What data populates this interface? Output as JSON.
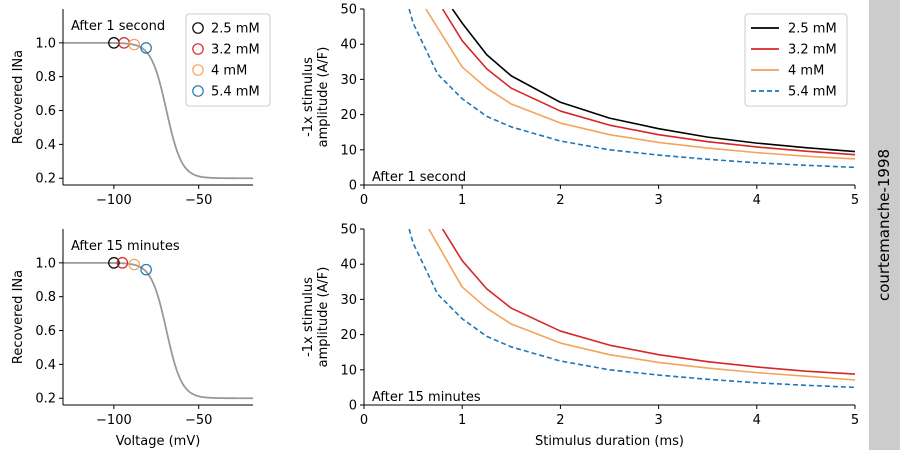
{
  "side_label": "courtemanche-1998",
  "colors": {
    "2.5 mM": "#000000",
    "3.2 mM": "#d62728",
    "4 mM": "#f5a35a",
    "5.4 mM": "#1f77b4",
    "curve": "#999999",
    "sidebar": "#cccccc"
  },
  "chart_data": [
    {
      "type": "line",
      "id": "recovery-1s",
      "annotation": "After 1 second",
      "ylabel": "Recovered INa",
      "xlabel": "",
      "xlim": [
        -130,
        -18
      ],
      "ylim": [
        0.16,
        1.2
      ],
      "xticks": [
        -100,
        -50
      ],
      "xtick_labels": [
        "−100",
        "−50"
      ],
      "yticks": [
        0.2,
        0.4,
        0.6,
        0.8,
        1.0
      ],
      "ytick_labels": [
        "0.2",
        "0.4",
        "0.6",
        "0.8",
        "1.0"
      ],
      "curve": {
        "v_half": -69,
        "slope": 4.5,
        "min": 0.2,
        "max": 1.0
      },
      "markers": [
        {
          "name": "2.5 mM",
          "x": -100,
          "y": 1.0
        },
        {
          "name": "3.2 mM",
          "x": -94,
          "y": 1.0
        },
        {
          "name": "4 mM",
          "x": -88,
          "y": 0.99
        },
        {
          "name": "5.4 mM",
          "x": -81,
          "y": 0.97
        }
      ],
      "legend": {
        "placement": "top-right",
        "entries": [
          "2.5 mM",
          "3.2 mM",
          "4 mM",
          "5.4 mM"
        ]
      }
    },
    {
      "type": "line",
      "id": "threshold-1s",
      "annotation": "After 1 second",
      "ylabel": "-1x stimulus\namplitude (A/F)",
      "xlabel": "",
      "xlim": [
        0,
        5
      ],
      "ylim": [
        0,
        50
      ],
      "xticks": [
        0,
        1,
        2,
        3,
        4,
        5
      ],
      "xtick_labels": [
        "0",
        "1",
        "2",
        "3",
        "4",
        "5"
      ],
      "yticks": [
        0,
        10,
        20,
        30,
        40,
        50
      ],
      "ytick_labels": [
        "0",
        "10",
        "20",
        "30",
        "40",
        "50"
      ],
      "series": [
        {
          "name": "2.5 mM",
          "style": "solid",
          "x": [
            0.9,
            1,
            1.25,
            1.5,
            2,
            2.5,
            3,
            3.5,
            4,
            4.5,
            5
          ],
          "y": [
            50,
            46,
            37,
            31,
            23.5,
            19,
            16,
            13.6,
            11.9,
            10.6,
            9.5
          ]
        },
        {
          "name": "3.2 mM",
          "style": "solid",
          "x": [
            0.8,
            1,
            1.25,
            1.5,
            2,
            2.5,
            3,
            3.5,
            4,
            4.5,
            5
          ],
          "y": [
            50,
            41,
            33,
            27.5,
            21,
            17,
            14.3,
            12.3,
            10.8,
            9.6,
            8.6
          ]
        },
        {
          "name": "4 mM",
          "style": "solid",
          "x": [
            0.63,
            1,
            1.25,
            1.5,
            2,
            2.5,
            3,
            3.5,
            4,
            4.5,
            5
          ],
          "y": [
            50,
            33.5,
            27.5,
            23,
            17.6,
            14.3,
            12.1,
            10.5,
            9.2,
            8.2,
            7.4
          ]
        },
        {
          "name": "5.4 mM",
          "style": "dashed",
          "x": [
            0.46,
            0.5,
            0.75,
            1,
            1.25,
            1.5,
            2,
            2.5,
            3,
            3.5,
            4,
            4.5,
            5
          ],
          "y": [
            50,
            46,
            31.5,
            24.5,
            19.5,
            16.5,
            12.5,
            10,
            8.5,
            7.3,
            6.3,
            5.6,
            5
          ]
        }
      ],
      "legend": {
        "placement": "top-right",
        "entries": [
          "2.5 mM",
          "3.2 mM",
          "4 mM",
          "5.4 mM"
        ]
      }
    },
    {
      "type": "line",
      "id": "recovery-15m",
      "annotation": "After 15 minutes",
      "ylabel": "Recovered INa",
      "xlabel": "Voltage (mV)",
      "xlim": [
        -130,
        -18
      ],
      "ylim": [
        0.16,
        1.2
      ],
      "xticks": [
        -100,
        -50
      ],
      "xtick_labels": [
        "−100",
        "−50"
      ],
      "yticks": [
        0.2,
        0.4,
        0.6,
        0.8,
        1.0
      ],
      "ytick_labels": [
        "0.2",
        "0.4",
        "0.6",
        "0.8",
        "1.0"
      ],
      "curve": {
        "v_half": -69,
        "slope": 4.5,
        "min": 0.2,
        "max": 1.0
      },
      "markers": [
        {
          "name": "2.5 mM",
          "x": -100,
          "y": 1.0
        },
        {
          "name": "3.2 mM",
          "x": -95,
          "y": 1.0
        },
        {
          "name": "4 mM",
          "x": -88,
          "y": 0.99
        },
        {
          "name": "5.4 mM",
          "x": -81,
          "y": 0.96
        }
      ]
    },
    {
      "type": "line",
      "id": "threshold-15m",
      "annotation": "After 15 minutes",
      "ylabel": "-1x stimulus\namplitude (A/F)",
      "xlabel": "Stimulus duration (ms)",
      "xlim": [
        0,
        5
      ],
      "ylim": [
        0,
        50
      ],
      "xticks": [
        0,
        1,
        2,
        3,
        4,
        5
      ],
      "xtick_labels": [
        "0",
        "1",
        "2",
        "3",
        "4",
        "5"
      ],
      "yticks": [
        0,
        10,
        20,
        30,
        40,
        50
      ],
      "ytick_labels": [
        "0",
        "10",
        "20",
        "30",
        "40",
        "50"
      ],
      "series": [
        {
          "name": "3.2 mM",
          "style": "solid",
          "x": [
            0.8,
            1,
            1.25,
            1.5,
            2,
            2.5,
            3,
            3.5,
            4,
            4.5,
            5
          ],
          "y": [
            50,
            41,
            33,
            27.5,
            21,
            17,
            14.3,
            12.3,
            10.8,
            9.6,
            8.8
          ]
        },
        {
          "name": "4 mM",
          "style": "solid",
          "x": [
            0.66,
            1,
            1.25,
            1.5,
            2,
            2.5,
            3,
            3.5,
            4,
            4.5,
            5
          ],
          "y": [
            50,
            33.5,
            27.5,
            23,
            17.6,
            14.3,
            12.1,
            10.5,
            9.2,
            8.2,
            7.1
          ]
        },
        {
          "name": "5.4 mM",
          "style": "dashed",
          "x": [
            0.46,
            0.5,
            0.75,
            1,
            1.25,
            1.5,
            2,
            2.5,
            3,
            3.5,
            4,
            4.5,
            5
          ],
          "y": [
            50,
            46,
            31.5,
            24.5,
            19.5,
            16.5,
            12.5,
            10,
            8.5,
            7.3,
            6.3,
            5.6,
            5
          ]
        }
      ]
    }
  ]
}
